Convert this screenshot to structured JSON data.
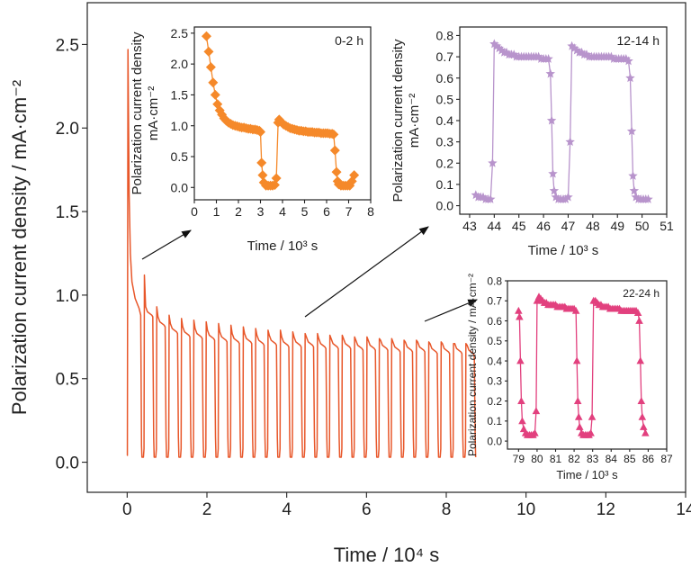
{
  "chart_data": [
    {
      "id": "main",
      "type": "line",
      "xlabel": "Time / 10⁴ s",
      "ylabel": "Polarization current density / mA·cm⁻²",
      "xlim": [
        -1,
        14
      ],
      "ylim": [
        -0.18,
        2.75
      ],
      "xticks": [
        0,
        2,
        4,
        6,
        8,
        10,
        12,
        14
      ],
      "xtick_labels": [
        "0",
        "2",
        "4",
        "6",
        "8",
        "10",
        "12",
        "14"
      ],
      "yticks": [
        0.0,
        0.5,
        1.0,
        1.5,
        2.0,
        2.5
      ],
      "ytick_labels": [
        "0.0",
        "0.5",
        "1.0",
        "1.5",
        "2.0",
        "2.5"
      ],
      "color": "#e8572a",
      "series": [
        {
          "description": "repeated polarization cycles",
          "cycle_count": 27,
          "cycle_period": 0.31,
          "cycle_start": 0.37,
          "low_value": 0.03,
          "first_spike": {
            "x": 0.02,
            "y": 2.47
          },
          "cycle_peaks": [
            1.12,
            0.93,
            0.88,
            0.86,
            0.85,
            0.84,
            0.83,
            0.82,
            0.81,
            0.8,
            0.79,
            0.79,
            0.78,
            0.77,
            0.77,
            0.76,
            0.76,
            0.75,
            0.75,
            0.74,
            0.74,
            0.73,
            0.73,
            0.72,
            0.72,
            0.71,
            0.71
          ],
          "cycle_plateaus": [
            0.88,
            0.82,
            0.78,
            0.76,
            0.75,
            0.74,
            0.73,
            0.72,
            0.72,
            0.71,
            0.71,
            0.7,
            0.7,
            0.7,
            0.69,
            0.69,
            0.69,
            0.68,
            0.68,
            0.68,
            0.67,
            0.67,
            0.67,
            0.66,
            0.66,
            0.66,
            0.65
          ]
        }
      ]
    },
    {
      "id": "inset-0-2h",
      "type": "scatter-line",
      "label": "0-2 h",
      "marker": "diamond",
      "color": "#f5892a",
      "xlabel": "Time / 10³ s",
      "ylabel": "Polarization current density",
      "ylabel2": "mA·cm⁻²",
      "xlim": [
        0,
        8
      ],
      "ylim": [
        -0.2,
        2.6
      ],
      "xticks": [
        0,
        1,
        2,
        3,
        4,
        5,
        6,
        7,
        8
      ],
      "xtick_labels": [
        "0",
        "1",
        "2",
        "3",
        "4",
        "5",
        "6",
        "7",
        "8"
      ],
      "yticks": [
        0.0,
        0.5,
        1.0,
        1.5,
        2.0,
        2.5
      ],
      "ytick_labels": [
        "0.0",
        "0.5",
        "1.0",
        "1.5",
        "2.0",
        "2.5"
      ],
      "x": [
        0.55,
        0.65,
        0.75,
        0.85,
        0.95,
        1.05,
        1.15,
        1.25,
        1.35,
        1.45,
        1.55,
        1.65,
        1.75,
        1.85,
        1.95,
        2.05,
        2.15,
        2.25,
        2.35,
        2.45,
        2.55,
        2.65,
        2.75,
        2.85,
        2.95,
        3.0,
        3.05,
        3.1,
        3.15,
        3.25,
        3.35,
        3.45,
        3.55,
        3.65,
        3.72,
        3.8,
        3.85,
        3.95,
        4.05,
        4.15,
        4.25,
        4.35,
        4.45,
        4.55,
        4.65,
        4.75,
        4.85,
        4.95,
        5.05,
        5.15,
        5.25,
        5.35,
        5.45,
        5.55,
        5.65,
        5.75,
        5.85,
        5.95,
        6.05,
        6.15,
        6.25,
        6.32,
        6.38,
        6.45,
        6.5,
        6.55,
        6.65,
        6.75,
        6.85,
        6.95,
        7.05,
        7.15,
        7.25
      ],
      "y": [
        2.45,
        2.2,
        1.95,
        1.7,
        1.5,
        1.35,
        1.25,
        1.18,
        1.12,
        1.08,
        1.05,
        1.03,
        1.01,
        1.0,
        0.99,
        0.98,
        0.97,
        0.97,
        0.96,
        0.95,
        0.95,
        0.94,
        0.94,
        0.93,
        0.92,
        0.9,
        0.4,
        0.2,
        0.08,
        0.03,
        0.03,
        0.03,
        0.03,
        0.04,
        0.15,
        1.05,
        1.1,
        1.06,
        1.02,
        1.0,
        0.98,
        0.96,
        0.95,
        0.94,
        0.93,
        0.92,
        0.92,
        0.91,
        0.91,
        0.9,
        0.9,
        0.9,
        0.89,
        0.89,
        0.89,
        0.88,
        0.88,
        0.88,
        0.88,
        0.87,
        0.87,
        0.86,
        0.6,
        0.25,
        0.1,
        0.05,
        0.03,
        0.03,
        0.03,
        0.03,
        0.03,
        0.1,
        0.2
      ]
    },
    {
      "id": "inset-12-14h",
      "type": "scatter-line",
      "label": "12-14 h",
      "marker": "star",
      "color": "#b894cc",
      "xlabel": "Time / 10³ s",
      "ylabel": "Polarization current density",
      "ylabel2": "mA·cm⁻²",
      "xlim": [
        42.6,
        51
      ],
      "ylim": [
        -0.04,
        0.84
      ],
      "xticks": [
        43,
        44,
        45,
        46,
        47,
        48,
        49,
        50,
        51
      ],
      "xtick_labels": [
        "43",
        "44",
        "45",
        "46",
        "47",
        "48",
        "49",
        "50",
        "51"
      ],
      "yticks": [
        0.0,
        0.1,
        0.2,
        0.3,
        0.4,
        0.5,
        0.6,
        0.7,
        0.8
      ],
      "ytick_labels": [
        "0.0",
        "0.1",
        "0.2",
        "0.3",
        "0.4",
        "0.5",
        "0.6",
        "0.7",
        "0.8"
      ],
      "x": [
        43.25,
        43.35,
        43.45,
        43.55,
        43.65,
        43.75,
        43.85,
        43.93,
        44.0,
        44.1,
        44.2,
        44.3,
        44.4,
        44.5,
        44.6,
        44.7,
        44.8,
        44.9,
        45.0,
        45.1,
        45.2,
        45.3,
        45.4,
        45.5,
        45.6,
        45.7,
        45.8,
        45.9,
        46.0,
        46.1,
        46.2,
        46.28,
        46.33,
        46.38,
        46.43,
        46.5,
        46.6,
        46.7,
        46.8,
        46.9,
        47.0,
        47.08,
        47.15,
        47.25,
        47.35,
        47.45,
        47.55,
        47.65,
        47.75,
        47.85,
        47.95,
        48.05,
        48.15,
        48.25,
        48.35,
        48.45,
        48.55,
        48.65,
        48.75,
        48.85,
        48.95,
        49.05,
        49.15,
        49.25,
        49.35,
        49.45,
        49.52,
        49.58,
        49.63,
        49.68,
        49.75,
        49.85,
        49.95,
        50.05,
        50.15,
        50.25
      ],
      "y": [
        0.05,
        0.04,
        0.04,
        0.04,
        0.03,
        0.03,
        0.03,
        0.2,
        0.76,
        0.75,
        0.74,
        0.73,
        0.72,
        0.72,
        0.71,
        0.71,
        0.71,
        0.7,
        0.7,
        0.7,
        0.7,
        0.7,
        0.7,
        0.7,
        0.7,
        0.7,
        0.7,
        0.69,
        0.69,
        0.69,
        0.69,
        0.62,
        0.4,
        0.15,
        0.07,
        0.04,
        0.03,
        0.03,
        0.03,
        0.03,
        0.04,
        0.3,
        0.75,
        0.74,
        0.73,
        0.72,
        0.72,
        0.71,
        0.71,
        0.7,
        0.7,
        0.7,
        0.7,
        0.7,
        0.7,
        0.7,
        0.7,
        0.7,
        0.7,
        0.69,
        0.69,
        0.69,
        0.69,
        0.69,
        0.69,
        0.68,
        0.6,
        0.35,
        0.14,
        0.07,
        0.04,
        0.03,
        0.03,
        0.03,
        0.03,
        0.03
      ]
    },
    {
      "id": "inset-22-24h",
      "type": "scatter-line",
      "label": "22-24 h",
      "marker": "triangle",
      "color": "#e2407e",
      "xlabel": "Time / 10³ s",
      "ylabel": "Polarization current density / mA·cm⁻²",
      "xlim": [
        78.4,
        87
      ],
      "ylim": [
        -0.04,
        0.8
      ],
      "xticks": [
        79,
        80,
        81,
        82,
        83,
        84,
        85,
        86,
        87
      ],
      "xtick_labels": [
        "79",
        "80",
        "81",
        "82",
        "83",
        "84",
        "85",
        "86",
        "87"
      ],
      "yticks": [
        0.0,
        0.1,
        0.2,
        0.3,
        0.4,
        0.5,
        0.6,
        0.7,
        0.8
      ],
      "ytick_labels": [
        "0.0",
        "0.1",
        "0.2",
        "0.3",
        "0.4",
        "0.5",
        "0.6",
        "0.7",
        "0.8"
      ],
      "x": [
        79.0,
        79.05,
        79.1,
        79.15,
        79.2,
        79.28,
        79.38,
        79.48,
        79.58,
        79.68,
        79.78,
        79.88,
        79.95,
        80.0,
        80.1,
        80.2,
        80.3,
        80.4,
        80.5,
        80.6,
        80.7,
        80.8,
        80.9,
        81.0,
        81.1,
        81.2,
        81.3,
        81.4,
        81.5,
        81.6,
        81.7,
        81.8,
        81.9,
        82.0,
        82.1,
        82.15,
        82.2,
        82.25,
        82.3,
        82.4,
        82.5,
        82.6,
        82.7,
        82.8,
        82.9,
        82.97,
        83.05,
        83.15,
        83.25,
        83.35,
        83.45,
        83.55,
        83.65,
        83.75,
        83.85,
        83.95,
        84.05,
        84.15,
        84.25,
        84.35,
        84.45,
        84.55,
        84.65,
        84.75,
        84.85,
        84.95,
        85.05,
        85.15,
        85.25,
        85.35,
        85.45,
        85.52,
        85.58,
        85.63,
        85.68,
        85.75,
        85.85
      ],
      "y": [
        0.65,
        0.62,
        0.4,
        0.2,
        0.1,
        0.06,
        0.04,
        0.03,
        0.03,
        0.03,
        0.03,
        0.04,
        0.15,
        0.7,
        0.72,
        0.71,
        0.7,
        0.69,
        0.69,
        0.68,
        0.68,
        0.68,
        0.68,
        0.68,
        0.67,
        0.67,
        0.67,
        0.67,
        0.67,
        0.66,
        0.66,
        0.66,
        0.66,
        0.66,
        0.65,
        0.4,
        0.2,
        0.12,
        0.07,
        0.04,
        0.03,
        0.03,
        0.03,
        0.03,
        0.04,
        0.12,
        0.7,
        0.7,
        0.69,
        0.68,
        0.68,
        0.67,
        0.67,
        0.67,
        0.67,
        0.66,
        0.66,
        0.66,
        0.66,
        0.66,
        0.66,
        0.65,
        0.65,
        0.65,
        0.65,
        0.65,
        0.65,
        0.65,
        0.65,
        0.65,
        0.64,
        0.6,
        0.4,
        0.2,
        0.12,
        0.07,
        0.04
      ]
    }
  ]
}
